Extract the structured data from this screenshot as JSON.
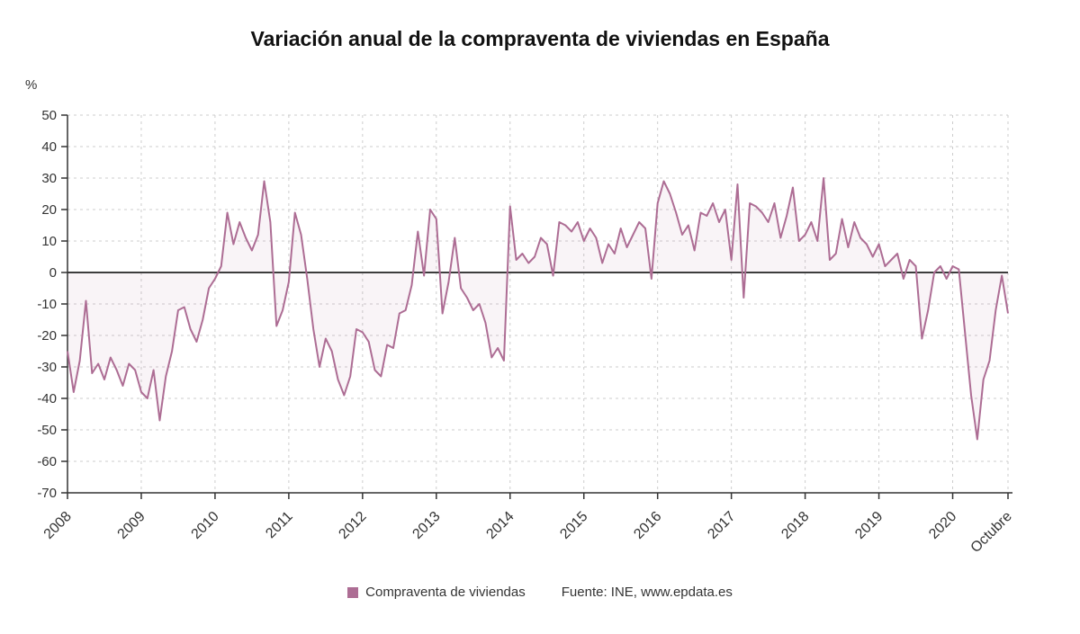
{
  "page": {
    "title": "Variación anual de la compraventa de viviendas en España"
  },
  "axis": {
    "unit_label": "%"
  },
  "legend": {
    "series_label": "Compraventa de viviendas",
    "source_label": "Fuente: INE, www.epdata.es"
  },
  "colors": {
    "series": "#ad6d94",
    "area_opacity": 0.08,
    "grid": "#cccccc",
    "axis": "#333333",
    "zero_line": "#3d3d3d",
    "text": "#333333",
    "title": "#111111"
  },
  "chart_data": {
    "type": "line",
    "title": "Variación anual de la compraventa de viviendas en España",
    "xlabel": "",
    "ylabel": "%",
    "ylim": [
      -70,
      50
    ],
    "ytick_step": 10,
    "grid": true,
    "legend_position": "bottom",
    "x_unit": "month",
    "x_tick_labels": [
      "2008",
      "2009",
      "2010",
      "2011",
      "2012",
      "2013",
      "2014",
      "2015",
      "2016",
      "2017",
      "2018",
      "2019",
      "2020",
      "Octubre"
    ],
    "x_tick_positions": [
      0,
      12,
      24,
      36,
      48,
      60,
      72,
      84,
      96,
      108,
      120,
      132,
      144,
      153
    ],
    "series": [
      {
        "name": "Compraventa de viviendas",
        "values": [
          -25,
          -38,
          -28,
          -9,
          -32,
          -29,
          -34,
          -27,
          -31,
          -36,
          -29,
          -31,
          -38,
          -40,
          -31,
          -47,
          -33,
          -25,
          -12,
          -11,
          -18,
          -22,
          -15,
          -5,
          -2,
          2,
          19,
          9,
          16,
          11,
          7,
          12,
          29,
          16,
          -17,
          -12,
          -3,
          19,
          12,
          -2,
          -18,
          -30,
          -21,
          -25,
          -34,
          -39,
          -33,
          -18,
          -19,
          -22,
          -31,
          -33,
          -23,
          -24,
          -13,
          -12,
          -4,
          13,
          -1,
          20,
          17,
          -13,
          -3,
          11,
          -5,
          -8,
          -12,
          -10,
          -16,
          -27,
          -24,
          -28,
          21,
          4,
          6,
          3,
          5,
          11,
          9,
          -1,
          16,
          15,
          13,
          16,
          10,
          14,
          11,
          3,
          9,
          6,
          14,
          8,
          12,
          16,
          14,
          -2,
          22,
          29,
          25,
          19,
          12,
          15,
          7,
          19,
          18,
          22,
          16,
          20,
          4,
          28,
          -8,
          22,
          21,
          19,
          16,
          22,
          11,
          18,
          27,
          10,
          12,
          16,
          10,
          30,
          4,
          6,
          17,
          8,
          16,
          11,
          9,
          5,
          9,
          2,
          4,
          6,
          -2,
          4,
          2,
          -21,
          -12,
          0,
          2,
          -2,
          2,
          1,
          -19,
          -39,
          -53,
          -34,
          -28,
          -12,
          -1,
          -13
        ]
      }
    ]
  }
}
